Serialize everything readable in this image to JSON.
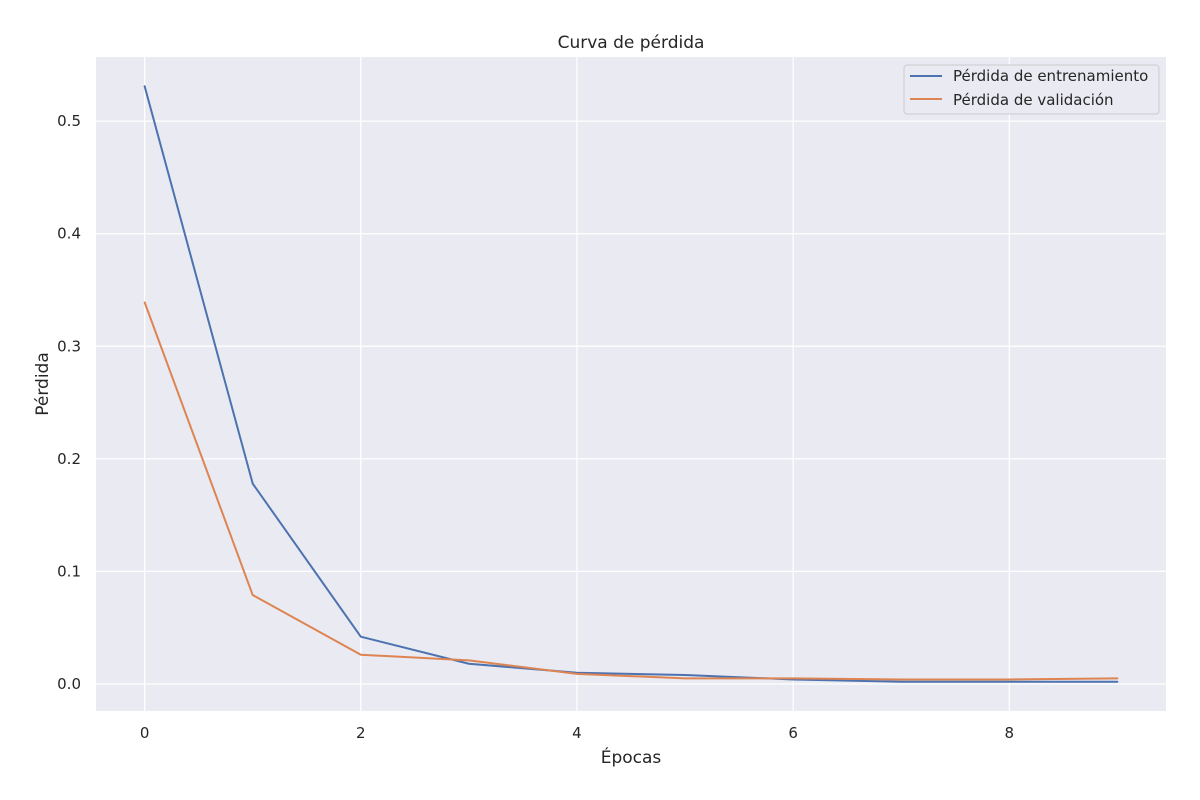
{
  "chart_data": {
    "type": "line",
    "title": "Curva de pérdida",
    "xlabel": "Épocas",
    "ylabel": "Pérdida",
    "x": [
      0,
      1,
      2,
      3,
      4,
      5,
      6,
      7,
      8,
      9
    ],
    "xlim": [
      -0.45,
      9.45
    ],
    "ylim": [
      -0.024,
      0.557
    ],
    "xticks": [
      0,
      2,
      4,
      6,
      8
    ],
    "yticks": [
      0.0,
      0.1,
      0.2,
      0.3,
      0.4,
      0.5
    ],
    "ytick_labels": [
      "0.0",
      "0.1",
      "0.2",
      "0.3",
      "0.4",
      "0.5"
    ],
    "grid": true,
    "legend_position": "top-right",
    "series": [
      {
        "name": "Pérdida de entrenamiento",
        "color": "#4c72b0",
        "values": [
          0.531,
          0.178,
          0.042,
          0.018,
          0.01,
          0.008,
          0.004,
          0.002,
          0.002,
          0.002
        ]
      },
      {
        "name": "Pérdida de validación",
        "color": "#dd8452",
        "values": [
          0.339,
          0.079,
          0.026,
          0.021,
          0.009,
          0.005,
          0.005,
          0.004,
          0.004,
          0.005
        ]
      }
    ]
  }
}
